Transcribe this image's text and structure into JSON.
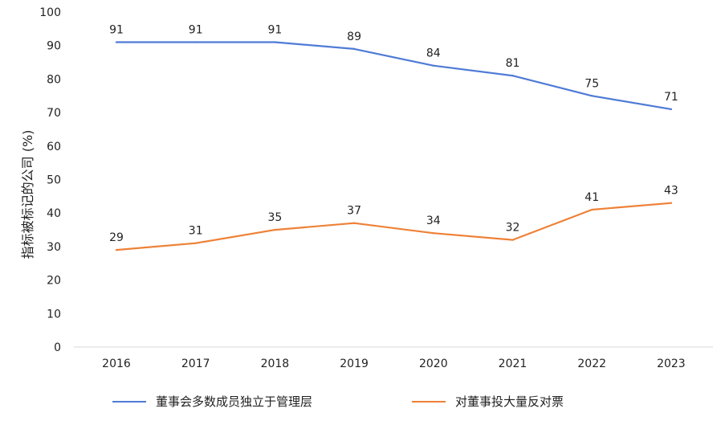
{
  "chart_data": {
    "type": "line",
    "categories": [
      "2016",
      "2017",
      "2018",
      "2019",
      "2020",
      "2021",
      "2022",
      "2023"
    ],
    "series": [
      {
        "name": "董事会多数成员独立于管理层",
        "values": [
          91,
          91,
          91,
          89,
          84,
          81,
          75,
          71
        ],
        "color": "#4f7bd6"
      },
      {
        "name": "对董事投大量反对票",
        "values": [
          29,
          31,
          35,
          37,
          34,
          32,
          41,
          43
        ],
        "color": "#ee8136"
      }
    ],
    "ylabel": "指标被标记的公司 (%)",
    "ylim": [
      0,
      100
    ],
    "yticks": [
      0,
      10,
      20,
      30,
      40,
      50,
      60,
      70,
      80,
      90,
      100
    ],
    "grid": false,
    "legend_position": "bottom"
  }
}
